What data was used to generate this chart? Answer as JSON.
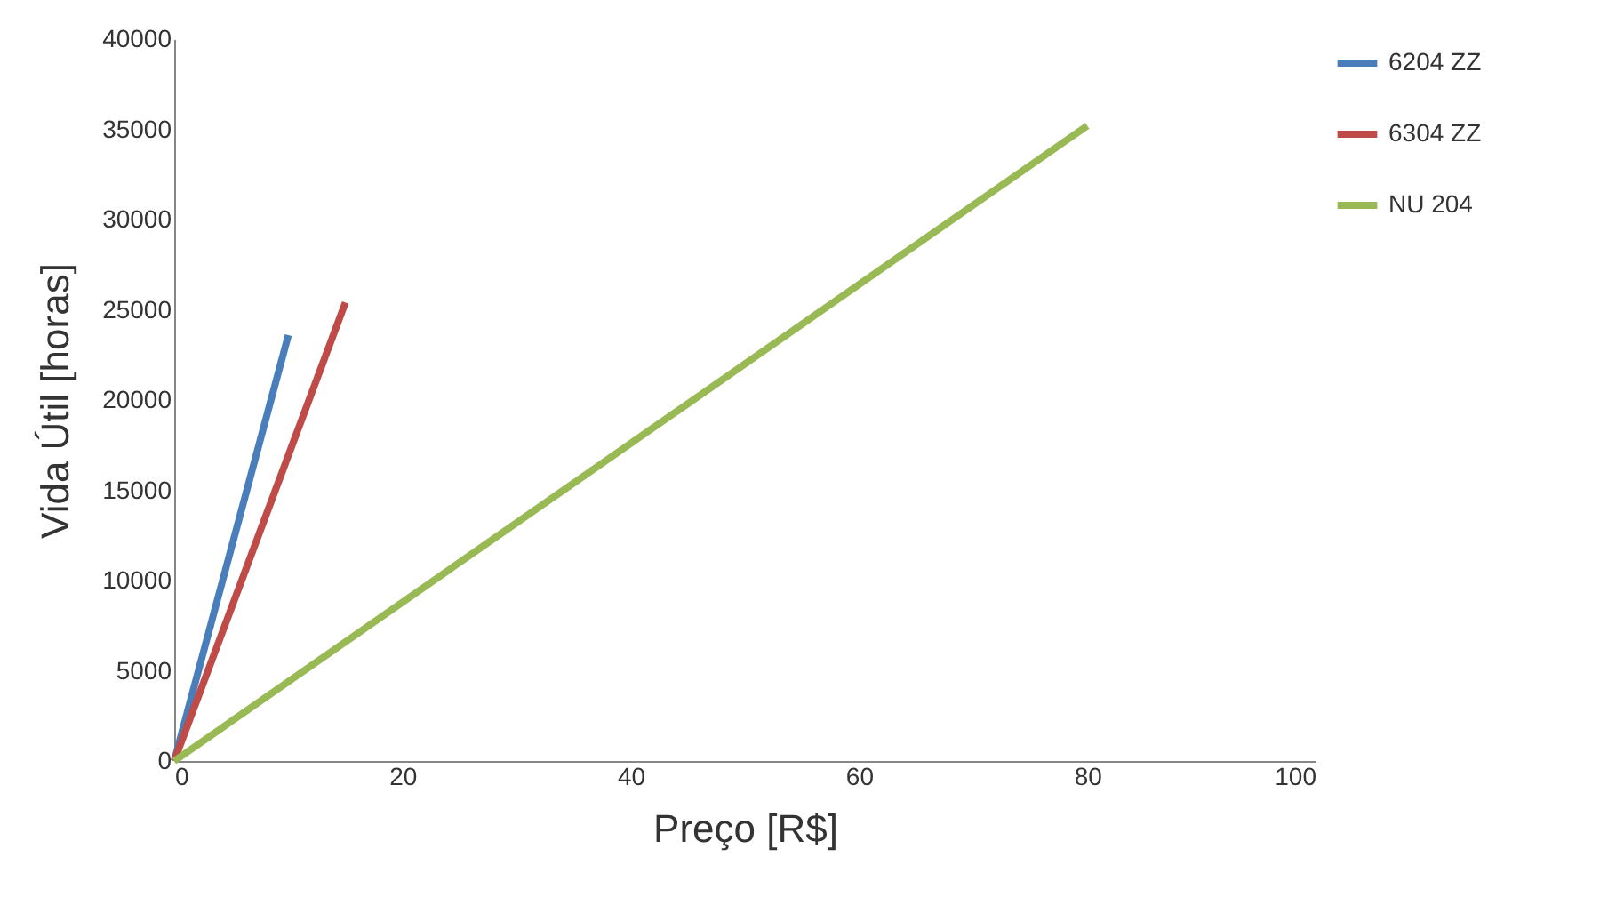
{
  "chart_data": {
    "type": "line",
    "xlabel": "Preço [R$]",
    "ylabel": "Vida Útil [horas]",
    "xlim": [
      0,
      100
    ],
    "xticks": [
      0,
      20,
      40,
      60,
      80,
      100
    ],
    "ylim": [
      0,
      40000
    ],
    "yticks": [
      0,
      5000,
      10000,
      15000,
      20000,
      25000,
      30000,
      35000,
      40000
    ],
    "legend": "right",
    "series": [
      {
        "name": "6204 ZZ",
        "color": "#4a7ebb",
        "x": [
          0,
          10
        ],
        "values": [
          0,
          23600
        ]
      },
      {
        "name": "6304 ZZ",
        "color": "#be4b48",
        "x": [
          0,
          15
        ],
        "values": [
          0,
          25400
        ]
      },
      {
        "name": "NU 204",
        "color": "#98b954",
        "x": [
          0,
          80
        ],
        "values": [
          0,
          35200
        ]
      }
    ]
  }
}
